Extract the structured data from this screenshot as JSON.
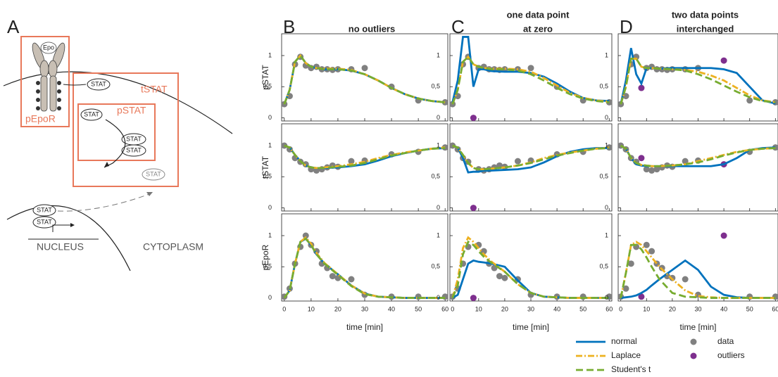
{
  "diagram": {
    "label": "A",
    "epo": "Epo",
    "stat": "STAT",
    "boxes": [
      "pEpoR",
      "tSTAT",
      "pSTAT"
    ],
    "nucleus": "NUCLEUS",
    "cytoplasm": "CYTOPLASM"
  },
  "axes": {
    "xlim": [
      -1,
      61
    ],
    "xticks": [
      0,
      10,
      20,
      30,
      40,
      50,
      60
    ],
    "ylim": [
      -0.05,
      1.35
    ],
    "yticks": [
      0,
      {
        "value": 0.5,
        "label": "0,5"
      },
      1
    ]
  },
  "legend": [
    {
      "name": "normal",
      "color": "#0072bd",
      "style": "solid"
    },
    {
      "name": "Laplace",
      "color": "#edb120",
      "style": "dashdot"
    },
    {
      "name": "Student's t",
      "color": "#77ac30",
      "style": "dashed"
    },
    {
      "name": "data",
      "color": "#808080",
      "style": "dot"
    },
    {
      "name": "outliers",
      "color": "#7e2f8e",
      "style": "dot"
    }
  ],
  "chart_data": [
    {
      "type": "line",
      "panel": "B",
      "title": [
        "no outliers"
      ],
      "ylabel": "pSTAT",
      "x": [
        0,
        2,
        4,
        6,
        8,
        10,
        12,
        15,
        20,
        25,
        30,
        35,
        40,
        45,
        50,
        55,
        60
      ],
      "series": [
        {
          "values": [
            0.22,
            0.45,
            0.9,
            1.0,
            0.88,
            0.82,
            0.8,
            0.78,
            0.78,
            0.76,
            0.7,
            0.6,
            0.48,
            0.38,
            0.31,
            0.27,
            0.25
          ]
        },
        {
          "values": [
            0.22,
            0.45,
            0.9,
            1.0,
            0.88,
            0.82,
            0.8,
            0.79,
            0.79,
            0.77,
            0.7,
            0.6,
            0.48,
            0.38,
            0.31,
            0.27,
            0.25
          ]
        },
        {
          "values": [
            0.22,
            0.45,
            0.9,
            1.0,
            0.88,
            0.82,
            0.8,
            0.78,
            0.78,
            0.76,
            0.7,
            0.6,
            0.48,
            0.38,
            0.31,
            0.27,
            0.25
          ]
        }
      ],
      "points": [
        {
          "x": [
            0,
            2,
            4,
            6,
            8,
            10,
            12,
            14,
            16,
            18,
            20,
            25,
            30,
            40,
            50,
            60
          ],
          "values": [
            0.22,
            0.35,
            0.86,
            0.98,
            0.84,
            0.8,
            0.82,
            0.78,
            0.78,
            0.77,
            0.78,
            0.78,
            0.8,
            0.5,
            0.28,
            0.25
          ]
        }
      ]
    },
    {
      "type": "line",
      "panel": "C",
      "title": [
        "one data point",
        "at zero"
      ],
      "x": [
        0,
        2,
        4,
        6,
        8,
        10,
        12,
        15,
        20,
        25,
        30,
        35,
        40,
        45,
        50,
        55,
        60
      ],
      "series": [
        {
          "values": [
            0.25,
            0.6,
            1.3,
            1.3,
            0.5,
            0.78,
            0.78,
            0.75,
            0.74,
            0.74,
            0.72,
            0.66,
            0.55,
            0.42,
            0.32,
            0.28,
            0.27
          ]
        },
        {
          "values": [
            0.22,
            0.45,
            0.9,
            0.98,
            0.86,
            0.82,
            0.8,
            0.79,
            0.79,
            0.78,
            0.74,
            0.64,
            0.52,
            0.4,
            0.32,
            0.28,
            0.26
          ]
        },
        {
          "values": [
            0.22,
            0.45,
            0.9,
            0.98,
            0.86,
            0.82,
            0.8,
            0.78,
            0.78,
            0.76,
            0.7,
            0.6,
            0.48,
            0.38,
            0.31,
            0.27,
            0.25
          ]
        }
      ],
      "points": [
        {
          "x": [
            0,
            2,
            4,
            6,
            10,
            12,
            14,
            16,
            18,
            20,
            25,
            30,
            40,
            50,
            60
          ],
          "values": [
            0.22,
            0.35,
            0.86,
            0.98,
            0.8,
            0.82,
            0.78,
            0.78,
            0.77,
            0.78,
            0.78,
            0.8,
            0.5,
            0.28,
            0.25
          ]
        },
        {
          "x": [
            8
          ],
          "values": [
            0
          ]
        }
      ]
    },
    {
      "type": "line",
      "panel": "D",
      "title": [
        "two data points",
        "interchanged"
      ],
      "x": [
        0,
        2,
        4,
        6,
        8,
        10,
        12,
        15,
        20,
        25,
        30,
        35,
        40,
        45,
        50,
        55,
        60
      ],
      "series": [
        {
          "values": [
            0.22,
            0.6,
            1.12,
            0.7,
            0.55,
            0.8,
            0.8,
            0.79,
            0.8,
            0.8,
            0.8,
            0.8,
            0.78,
            0.72,
            0.5,
            0.28,
            0.23
          ]
        },
        {
          "values": [
            0.22,
            0.5,
            0.95,
            0.95,
            0.82,
            0.8,
            0.8,
            0.79,
            0.78,
            0.77,
            0.74,
            0.68,
            0.6,
            0.48,
            0.36,
            0.28,
            0.25
          ]
        },
        {
          "values": [
            0.22,
            0.5,
            0.95,
            0.95,
            0.82,
            0.8,
            0.8,
            0.79,
            0.78,
            0.76,
            0.7,
            0.62,
            0.52,
            0.42,
            0.33,
            0.27,
            0.25
          ]
        }
      ],
      "points": [
        {
          "x": [
            0,
            2,
            4,
            6,
            10,
            12,
            14,
            16,
            18,
            20,
            25,
            30,
            50,
            60
          ],
          "values": [
            0.22,
            0.35,
            0.86,
            0.98,
            0.8,
            0.82,
            0.78,
            0.78,
            0.77,
            0.78,
            0.78,
            0.8,
            0.28,
            0.25
          ]
        },
        {
          "x": [
            8,
            40
          ],
          "values": [
            0.48,
            0.92
          ]
        }
      ]
    },
    {
      "type": "line",
      "ylabel": "tSTAT",
      "x": [
        0,
        2,
        4,
        6,
        8,
        10,
        12,
        15,
        20,
        25,
        30,
        35,
        40,
        45,
        50,
        55,
        60
      ],
      "series": [
        {
          "values": [
            1.0,
            0.97,
            0.85,
            0.75,
            0.68,
            0.65,
            0.64,
            0.64,
            0.65,
            0.67,
            0.7,
            0.76,
            0.83,
            0.88,
            0.92,
            0.95,
            0.96
          ]
        },
        {
          "values": [
            1.0,
            0.97,
            0.85,
            0.75,
            0.68,
            0.65,
            0.64,
            0.65,
            0.67,
            0.7,
            0.74,
            0.8,
            0.85,
            0.89,
            0.92,
            0.95,
            0.97
          ]
        },
        {
          "values": [
            1.0,
            0.97,
            0.85,
            0.75,
            0.68,
            0.65,
            0.64,
            0.64,
            0.66,
            0.68,
            0.72,
            0.78,
            0.84,
            0.88,
            0.92,
            0.95,
            0.96
          ]
        }
      ],
      "points": [
        {
          "x": [
            0,
            2,
            4,
            6,
            8,
            10,
            12,
            14,
            16,
            18,
            20,
            25,
            30,
            40,
            50,
            60
          ],
          "values": [
            1.0,
            0.94,
            0.8,
            0.74,
            0.7,
            0.62,
            0.6,
            0.62,
            0.65,
            0.68,
            0.66,
            0.75,
            0.76,
            0.86,
            0.9,
            0.97
          ]
        }
      ]
    },
    {
      "type": "line",
      "x": [
        0,
        2,
        4,
        6,
        8,
        10,
        12,
        15,
        20,
        25,
        30,
        35,
        40,
        45,
        50,
        55,
        60
      ],
      "series": [
        {
          "values": [
            1.0,
            0.97,
            0.8,
            0.57,
            0.58,
            0.58,
            0.6,
            0.6,
            0.61,
            0.62,
            0.65,
            0.73,
            0.83,
            0.9,
            0.94,
            0.96,
            0.96
          ]
        },
        {
          "values": [
            1.0,
            0.97,
            0.85,
            0.72,
            0.64,
            0.62,
            0.62,
            0.63,
            0.65,
            0.68,
            0.73,
            0.8,
            0.85,
            0.89,
            0.92,
            0.95,
            0.97
          ]
        },
        {
          "values": [
            1.0,
            0.97,
            0.85,
            0.72,
            0.64,
            0.62,
            0.62,
            0.63,
            0.65,
            0.68,
            0.72,
            0.78,
            0.84,
            0.88,
            0.92,
            0.95,
            0.96
          ]
        }
      ],
      "points": [
        {
          "x": [
            0,
            2,
            4,
            6,
            10,
            12,
            14,
            16,
            18,
            20,
            25,
            30,
            40,
            50,
            60
          ],
          "values": [
            1.0,
            0.94,
            0.8,
            0.74,
            0.62,
            0.6,
            0.62,
            0.65,
            0.68,
            0.66,
            0.75,
            0.76,
            0.86,
            0.9,
            0.97
          ]
        },
        {
          "x": [
            8
          ],
          "values": [
            0
          ]
        }
      ]
    },
    {
      "type": "line",
      "x": [
        0,
        2,
        4,
        6,
        8,
        10,
        12,
        15,
        20,
        25,
        30,
        35,
        40,
        45,
        50,
        55,
        60
      ],
      "series": [
        {
          "values": [
            1.0,
            0.95,
            0.8,
            0.7,
            0.68,
            0.67,
            0.67,
            0.67,
            0.67,
            0.67,
            0.67,
            0.67,
            0.7,
            0.8,
            0.93,
            0.96,
            0.97
          ]
        },
        {
          "values": [
            1.0,
            0.95,
            0.8,
            0.72,
            0.69,
            0.68,
            0.67,
            0.67,
            0.68,
            0.7,
            0.75,
            0.8,
            0.85,
            0.9,
            0.93,
            0.95,
            0.96
          ]
        },
        {
          "values": [
            1.0,
            0.95,
            0.8,
            0.72,
            0.69,
            0.68,
            0.67,
            0.67,
            0.68,
            0.7,
            0.73,
            0.78,
            0.84,
            0.89,
            0.93,
            0.95,
            0.96
          ]
        }
      ],
      "points": [
        {
          "x": [
            0,
            2,
            4,
            6,
            10,
            12,
            14,
            16,
            18,
            20,
            25,
            30,
            50,
            60
          ],
          "values": [
            1.0,
            0.94,
            0.8,
            0.74,
            0.62,
            0.6,
            0.62,
            0.65,
            0.68,
            0.66,
            0.75,
            0.76,
            0.9,
            0.97
          ]
        },
        {
          "x": [
            8,
            40
          ],
          "values": [
            0.8,
            0.7
          ]
        }
      ]
    },
    {
      "type": "line",
      "ylabel": "pEpoR",
      "xlabel": "time [min]",
      "x": [
        0,
        2,
        4,
        6,
        8,
        10,
        12,
        15,
        20,
        25,
        30,
        35,
        40,
        45,
        50,
        55,
        60
      ],
      "series": [
        {
          "values": [
            0.0,
            0.12,
            0.55,
            0.9,
            0.95,
            0.85,
            0.7,
            0.55,
            0.38,
            0.2,
            0.07,
            0.02,
            0.01,
            0,
            0,
            0,
            0
          ]
        },
        {
          "values": [
            0.0,
            0.12,
            0.55,
            0.9,
            0.97,
            0.87,
            0.72,
            0.56,
            0.38,
            0.2,
            0.07,
            0.02,
            0.01,
            0,
            0,
            0,
            0
          ]
        },
        {
          "values": [
            0.0,
            0.12,
            0.55,
            0.9,
            0.95,
            0.85,
            0.7,
            0.55,
            0.37,
            0.19,
            0.06,
            0.02,
            0.01,
            0,
            0,
            0,
            0
          ]
        }
      ],
      "points": [
        {
          "x": [
            0,
            2,
            4,
            6,
            8,
            10,
            12,
            14,
            16,
            18,
            20,
            25,
            30,
            40,
            50,
            60
          ],
          "values": [
            0.02,
            0.15,
            0.55,
            0.82,
            1.0,
            0.85,
            0.75,
            0.55,
            0.48,
            0.35,
            0.32,
            0.3,
            0.05,
            0.02,
            0.02,
            0.02
          ]
        }
      ]
    },
    {
      "type": "line",
      "xlabel": "time [min]",
      "x": [
        0,
        2,
        4,
        6,
        8,
        10,
        12,
        15,
        20,
        25,
        30,
        35,
        40,
        45,
        50,
        55,
        60
      ],
      "series": [
        {
          "values": [
            0,
            0.05,
            0.3,
            0.55,
            0.6,
            0.58,
            0.57,
            0.55,
            0.5,
            0.28,
            0.08,
            0.02,
            0.01,
            0,
            0,
            0,
            0
          ]
        },
        {
          "values": [
            0,
            0.3,
            0.8,
            0.97,
            0.9,
            0.8,
            0.7,
            0.58,
            0.42,
            0.22,
            0.08,
            0.02,
            0.01,
            0,
            0,
            0,
            0
          ]
        },
        {
          "values": [
            0,
            0.2,
            0.7,
            0.9,
            0.85,
            0.75,
            0.66,
            0.56,
            0.42,
            0.22,
            0.08,
            0.02,
            0.01,
            0,
            0,
            0,
            0
          ]
        }
      ],
      "points": [
        {
          "x": [
            0,
            2,
            4,
            6,
            10,
            12,
            14,
            16,
            18,
            20,
            25,
            30,
            40,
            50,
            60
          ],
          "values": [
            0.02,
            0.15,
            0.55,
            0.82,
            0.85,
            0.75,
            0.55,
            0.48,
            0.35,
            0.32,
            0.3,
            0.05,
            0.02,
            0.02,
            0.02
          ]
        },
        {
          "x": [
            8
          ],
          "values": [
            0
          ]
        }
      ]
    },
    {
      "type": "line",
      "xlabel": "time [min]",
      "x": [
        0,
        2,
        4,
        6,
        8,
        10,
        12,
        15,
        20,
        25,
        30,
        35,
        40,
        45,
        50,
        55,
        60
      ],
      "series": [
        {
          "values": [
            0,
            0.01,
            0.02,
            0.04,
            0.08,
            0.13,
            0.2,
            0.3,
            0.45,
            0.6,
            0.45,
            0.18,
            0.05,
            0.01,
            0,
            0,
            0
          ]
        },
        {
          "values": [
            0,
            0.4,
            0.85,
            0.9,
            0.85,
            0.75,
            0.65,
            0.5,
            0.3,
            0.12,
            0.03,
            0.01,
            0,
            0,
            0,
            0,
            0
          ]
        },
        {
          "values": [
            0,
            0.4,
            0.85,
            0.85,
            0.78,
            0.65,
            0.5,
            0.3,
            0.08,
            0.02,
            0.01,
            0,
            0,
            0,
            0,
            0,
            0
          ]
        }
      ],
      "points": [
        {
          "x": [
            0,
            2,
            4,
            6,
            10,
            12,
            14,
            16,
            18,
            20,
            25,
            30,
            50,
            60
          ],
          "values": [
            0.02,
            0.15,
            0.55,
            0.82,
            0.85,
            0.75,
            0.55,
            0.48,
            0.35,
            0.32,
            0.3,
            0.05,
            0.02,
            0.02
          ]
        },
        {
          "x": [
            8,
            40
          ],
          "values": [
            0.02,
            1.0
          ]
        }
      ]
    }
  ]
}
